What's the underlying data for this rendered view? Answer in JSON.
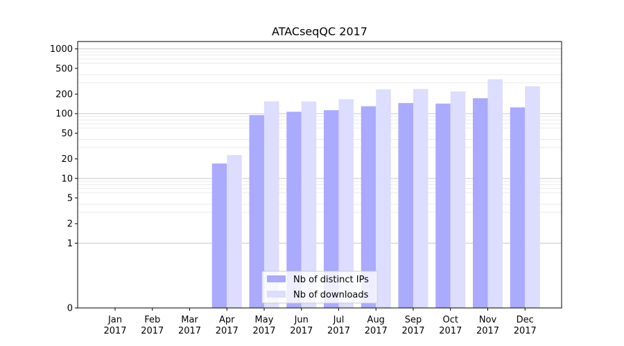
{
  "chart_data": {
    "type": "bar",
    "title": "ATACseqQC 2017",
    "xlabel": "",
    "ylabel": "",
    "yscale": "symlog",
    "ylim": [
      0,
      1300
    ],
    "yticks": [
      0,
      1,
      2,
      5,
      10,
      20,
      50,
      100,
      200,
      500,
      1000
    ],
    "ytick_labels": [
      "0",
      "1",
      "2",
      "5",
      "10",
      "20",
      "50",
      "100",
      "200",
      "500",
      "1000"
    ],
    "categories": [
      [
        "Jan",
        "2017"
      ],
      [
        "Feb",
        "2017"
      ],
      [
        "Mar",
        "2017"
      ],
      [
        "Apr",
        "2017"
      ],
      [
        "May",
        "2017"
      ],
      [
        "Jun",
        "2017"
      ],
      [
        "Jul",
        "2017"
      ],
      [
        "Aug",
        "2017"
      ],
      [
        "Sep",
        "2017"
      ],
      [
        "Oct",
        "2017"
      ],
      [
        "Nov",
        "2017"
      ],
      [
        "Dec",
        "2017"
      ]
    ],
    "series": [
      {
        "name": "Nb of distinct IPs",
        "color": "#aaaaff",
        "values": [
          0,
          0,
          0,
          17,
          95,
          107,
          113,
          130,
          146,
          143,
          173,
          125
        ]
      },
      {
        "name": "Nb of downloads",
        "color": "#ddddff",
        "values": [
          0,
          0,
          0,
          23,
          155,
          154,
          167,
          237,
          240,
          220,
          340,
          265
        ]
      }
    ],
    "grid": true,
    "legend_position": "bottom-center"
  }
}
